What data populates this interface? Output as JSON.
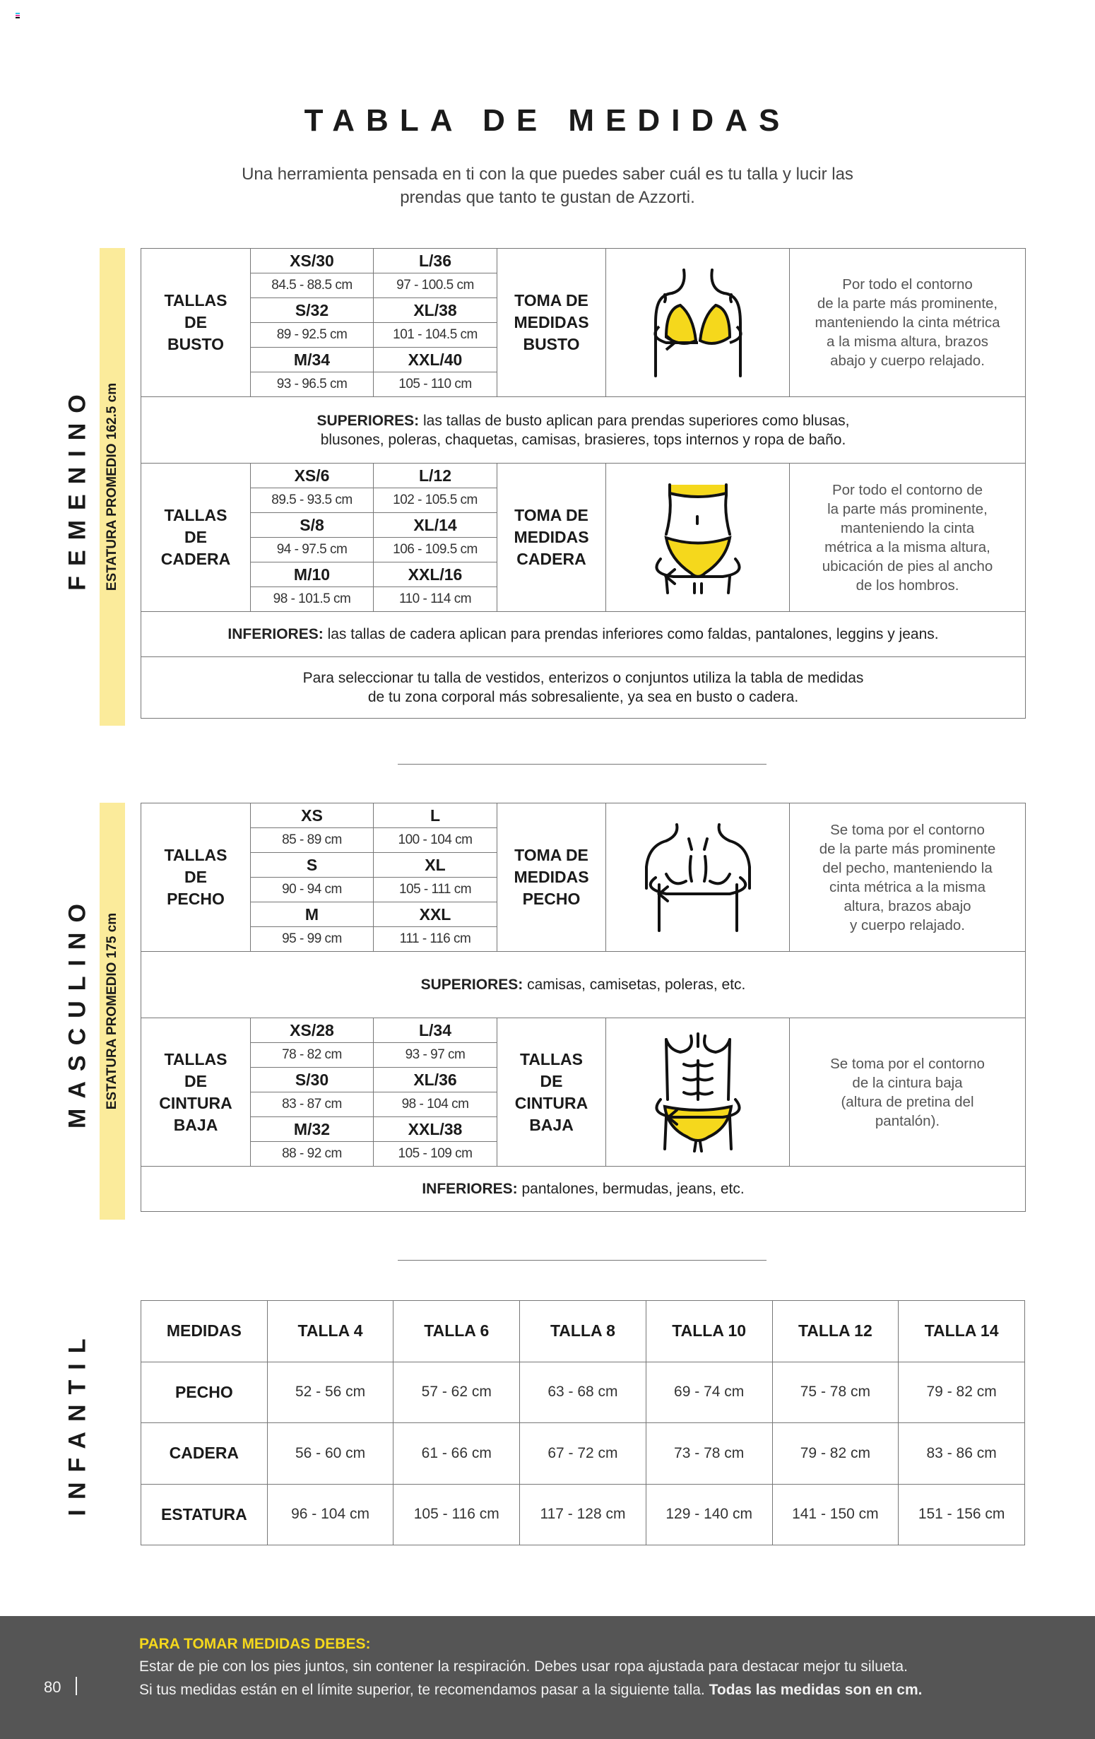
{
  "header": {
    "title": "TABLA DE MEDIDAS",
    "subtitle": "Una herramienta pensada en ti con la que puedes saber cuál es tu talla y lucir las prendas que tanto te gustan de Azzorti."
  },
  "colors": {
    "accent_yellow": "#f5d81c",
    "bar_yellow": "#fbeb9b",
    "footer_bg": "#555555"
  },
  "femenino": {
    "label": "FEMENINO",
    "estatura": "ESTATURA PROMEDIO 162.5 cm",
    "busto": {
      "label": "TALLAS\nDE\nBUSTO",
      "rows": [
        {
          "left_size": "XS/30",
          "left_range": "84.5 - 88.5 cm",
          "right_size": "L/36",
          "right_range": "97 - 100.5 cm"
        },
        {
          "left_size": "S/32",
          "left_range": "89 - 92.5 cm",
          "right_size": "XL/38",
          "right_range": "101 - 104.5 cm"
        },
        {
          "left_size": "M/34",
          "left_range": "93 - 96.5 cm",
          "right_size": "XXL/40",
          "right_range": "105 - 110 cm"
        }
      ],
      "toma": "TOMA DE\nMEDIDAS\nBUSTO",
      "icon": "bust-measure-illustration",
      "desc": "Por todo el contorno\nde la parte más prominente,\nmanteniendo la cinta métrica\na la misma altura, brazos\nabajo y cuerpo relajado."
    },
    "superiores": {
      "prefix": "SUPERIORES:",
      "text": " las tallas de busto aplican para prendas superiores como blusas, blusones, poleras, chaquetas, camisas, brasieres, tops internos y ropa de baño."
    },
    "cadera": {
      "label": "TALLAS\nDE\nCADERA",
      "rows": [
        {
          "left_size": "XS/6",
          "left_range": "89.5 - 93.5 cm",
          "right_size": "L/12",
          "right_range": "102 - 105.5 cm"
        },
        {
          "left_size": "S/8",
          "left_range": "94 - 97.5 cm",
          "right_size": "XL/14",
          "right_range": "106 - 109.5 cm"
        },
        {
          "left_size": "M/10",
          "left_range": "98 - 101.5 cm",
          "right_size": "XXL/16",
          "right_range": "110 - 114 cm"
        }
      ],
      "toma": "TOMA DE\nMEDIDAS\nCADERA",
      "icon": "hip-measure-illustration",
      "desc": "Por todo el contorno de\nla parte más prominente,\nmanteniendo la cinta\nmétrica a la misma altura,\nubicación de pies al ancho\nde los hombros."
    },
    "inferiores": {
      "prefix": "INFERIORES:",
      "text": " las tallas de cadera aplican para prendas inferiores como faldas, pantalones, leggins y jeans."
    },
    "vestidos": "Para seleccionar tu talla de vestidos, enterizos o conjuntos utiliza la tabla de medidas de tu zona corporal más sobresaliente, ya sea en busto o cadera."
  },
  "masculino": {
    "label": "MASCULINO",
    "estatura": "ESTATURA PROMEDIO 175 cm",
    "pecho": {
      "label": "TALLAS\nDE\nPECHO",
      "rows": [
        {
          "left_size": "XS",
          "left_range": "85 - 89 cm",
          "right_size": "L",
          "right_range": "100 - 104 cm"
        },
        {
          "left_size": "S",
          "left_range": "90 - 94 cm",
          "right_size": "XL",
          "right_range": "105 - 111 cm"
        },
        {
          "left_size": "M",
          "left_range": "95 - 99 cm",
          "right_size": "XXL",
          "right_range": "111 - 116 cm"
        }
      ],
      "toma": "TOMA DE\nMEDIDAS\nPECHO",
      "icon": "chest-measure-illustration",
      "desc": "Se toma por el contorno\nde la parte más prominente\ndel pecho, manteniendo la\ncinta métrica a la misma\naltura, brazos abajo\ny cuerpo relajado."
    },
    "superiores": {
      "prefix": "SUPERIORES:",
      "text": " camisas, camisetas, poleras, etc."
    },
    "cintura": {
      "label": "TALLAS\nDE\nCINTURA\nBAJA",
      "rows": [
        {
          "left_size": "XS/28",
          "left_range": "78 - 82 cm",
          "right_size": "L/34",
          "right_range": "93 - 97 cm"
        },
        {
          "left_size": "S/30",
          "left_range": "83 - 87 cm",
          "right_size": "XL/36",
          "right_range": "98 - 104 cm"
        },
        {
          "left_size": "M/32",
          "left_range": "88 - 92 cm",
          "right_size": "XXL/38",
          "right_range": "105 - 109 cm"
        }
      ],
      "toma": "TALLAS\nDE\nCINTURA\nBAJA",
      "icon": "waist-measure-illustration",
      "desc": "Se toma por el contorno\nde la cintura baja\n(altura de pretina del\npantalón)."
    },
    "inferiores": {
      "prefix": "INFERIORES:",
      "text": " pantalones, bermudas, jeans, etc."
    }
  },
  "infantil": {
    "label": "INFANTIL",
    "headers": [
      "MEDIDAS",
      "TALLA 4",
      "TALLA 6",
      "TALLA 8",
      "TALLA 10",
      "TALLA 12",
      "TALLA 14"
    ],
    "rows": [
      {
        "label": "PECHO",
        "values": [
          "52 - 56 cm",
          "57 - 62 cm",
          "63 - 68 cm",
          "69 - 74 cm",
          "75 - 78 cm",
          "79 - 82 cm"
        ]
      },
      {
        "label": "CADERA",
        "values": [
          "56 - 60 cm",
          "61 - 66 cm",
          "67 - 72 cm",
          "73 - 78 cm",
          "79 - 82 cm",
          "83 - 86 cm"
        ]
      },
      {
        "label": "ESTATURA",
        "values": [
          "96 - 104 cm",
          "105 - 116 cm",
          "117 - 128 cm",
          "129 - 140 cm",
          "141 - 150 cm",
          "151 - 156 cm"
        ]
      }
    ]
  },
  "footer": {
    "heading": "PARA TOMAR MEDIDAS DEBES:",
    "line1": "Estar de pie con los pies juntos, sin contener la respiración. Debes usar ropa ajustada para destacar mejor tu silueta.",
    "line2": "Si tus medidas están en el límite superior, te recomendamos pasar a la siguiente talla. ",
    "line2_bold": "Todas las medidas son en cm.",
    "page_number": "80"
  }
}
